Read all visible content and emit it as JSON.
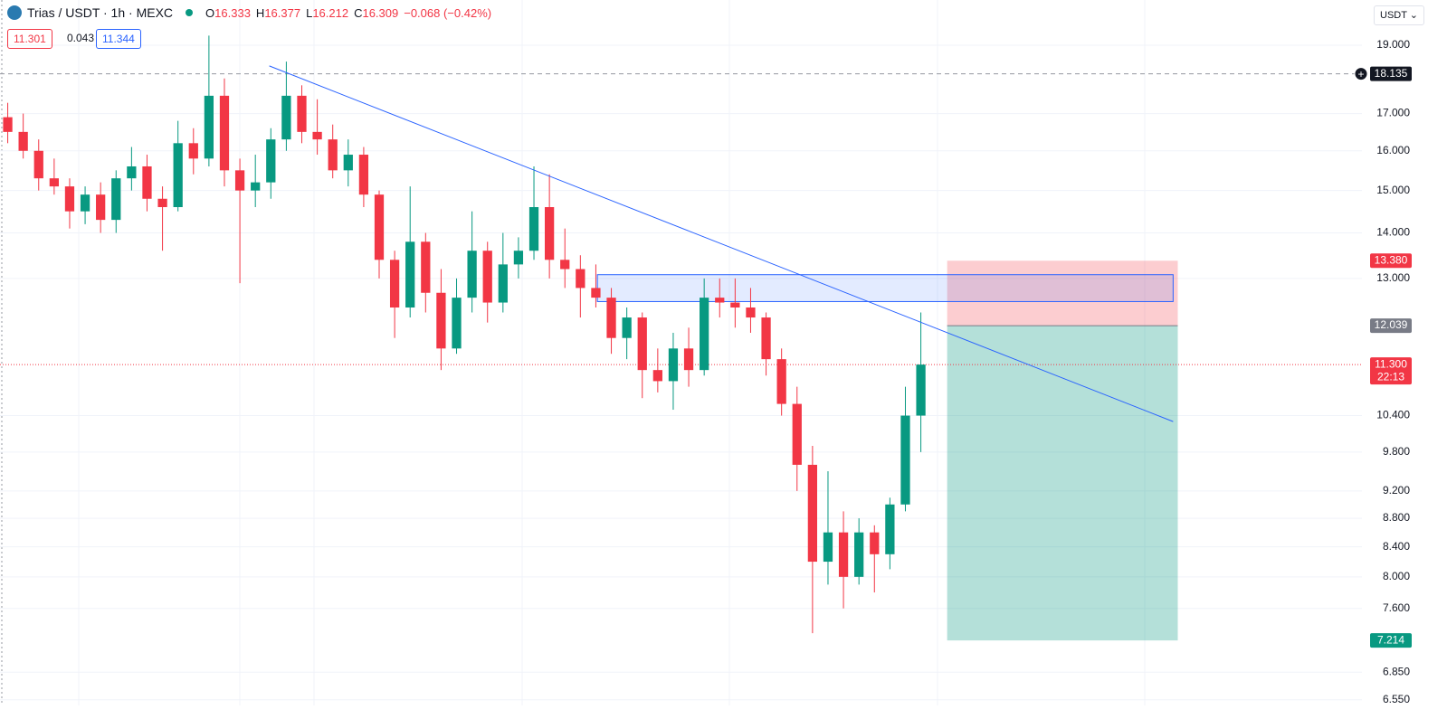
{
  "header": {
    "symbol": "Trias / USDT · 1h · MEXC",
    "ohlc": [
      {
        "key": "O",
        "value": 16.333
      },
      {
        "key": "H",
        "value": 16.377
      },
      {
        "key": "L",
        "value": 16.212
      },
      {
        "key": "C",
        "value": 16.309
      }
    ],
    "change": "−0.068 (−0.42%)"
  },
  "trade": {
    "sell": 11.301,
    "spread": 0.043,
    "buy": 11.344
  },
  "currency": "USDT",
  "chart_data": {
    "type": "candlestick",
    "log_scale": true,
    "grid": true,
    "up_color": "#089981",
    "down_color": "#f23645",
    "xlim": [
      -0.5,
      87.5
    ],
    "ylim": [
      6.49,
      20.45
    ],
    "yticks": [
      {
        "value": 19,
        "label": "19.000"
      },
      {
        "value": 17,
        "label": "17.000"
      },
      {
        "value": 16,
        "label": "16.000"
      },
      {
        "value": 15,
        "label": "15.000"
      },
      {
        "value": 14,
        "label": "14.000"
      },
      {
        "value": 13,
        "label": "13.000"
      },
      {
        "value": 10.4,
        "label": "10.400"
      },
      {
        "value": 9.8,
        "label": "9.800"
      },
      {
        "value": 9.2,
        "label": "9.200"
      },
      {
        "value": 8.8,
        "label": "8.800"
      },
      {
        "value": 8.4,
        "label": "8.400"
      },
      {
        "value": 8,
        "label": "8.000"
      },
      {
        "value": 7.6,
        "label": "7.600"
      },
      {
        "value": 6.85,
        "label": "6.850"
      },
      {
        "value": 6.55,
        "label": "6.550"
      }
    ],
    "open": [
      16.9,
      16.5,
      16.0,
      15.3,
      15.1,
      14.5,
      14.9,
      14.3,
      15.3,
      15.6,
      14.8,
      14.6,
      16.2,
      15.8,
      17.5,
      15.5,
      15.0,
      15.2,
      16.3,
      17.5,
      16.5,
      16.3,
      15.5,
      15.9,
      14.9,
      13.4,
      12.4,
      13.8,
      12.7,
      11.6,
      12.6,
      13.6,
      12.5,
      13.3,
      13.6,
      14.6,
      13.4,
      13.2,
      12.8,
      12.6,
      11.8,
      12.2,
      11.2,
      11.0,
      11.6,
      11.2,
      12.6,
      12.5,
      12.4,
      12.2,
      11.4,
      10.6,
      9.6,
      8.2,
      8.6,
      8.0,
      8.6,
      8.3,
      9.0,
      10.4
    ],
    "high": [
      17.3,
      17.0,
      16.3,
      15.8,
      15.3,
      15.1,
      15.2,
      15.5,
      16.1,
      15.9,
      15.1,
      16.8,
      16.6,
      19.3,
      18.0,
      15.8,
      15.9,
      16.6,
      18.5,
      17.8,
      17.4,
      16.7,
      16.3,
      16.1,
      15.0,
      13.6,
      15.1,
      14.0,
      13.2,
      13.0,
      14.5,
      13.8,
      14.0,
      13.9,
      15.6,
      15.4,
      14.1,
      13.5,
      13.3,
      12.8,
      12.4,
      12.3,
      11.6,
      11.9,
      12.0,
      13.0,
      13.0,
      13.0,
      12.8,
      12.3,
      11.6,
      10.9,
      9.9,
      9.5,
      8.9,
      8.8,
      8.7,
      9.1,
      10.9,
      12.3
    ],
    "low": [
      16.2,
      15.8,
      15.0,
      14.9,
      14.1,
      14.2,
      14.0,
      14.0,
      15.0,
      14.5,
      13.6,
      14.5,
      15.4,
      15.6,
      15.1,
      12.9,
      14.6,
      14.8,
      16.0,
      16.2,
      15.9,
      15.3,
      15.1,
      14.6,
      13.0,
      11.8,
      12.2,
      12.3,
      11.2,
      11.5,
      12.3,
      12.1,
      12.3,
      13.0,
      13.4,
      13.0,
      12.8,
      12.2,
      12.4,
      11.5,
      11.4,
      10.7,
      10.8,
      10.5,
      10.9,
      11.1,
      12.2,
      12.0,
      11.9,
      11.1,
      10.4,
      9.2,
      7.3,
      7.9,
      7.6,
      7.9,
      7.8,
      8.1,
      8.9,
      9.8
    ],
    "close": [
      16.5,
      16.0,
      15.3,
      15.1,
      14.5,
      14.9,
      14.3,
      15.3,
      15.6,
      14.8,
      14.6,
      16.2,
      15.8,
      17.5,
      15.5,
      15.0,
      15.2,
      16.3,
      17.5,
      16.5,
      16.3,
      15.5,
      15.9,
      14.9,
      13.4,
      12.4,
      13.8,
      12.7,
      11.6,
      12.6,
      13.6,
      12.5,
      13.3,
      13.6,
      14.6,
      13.4,
      13.2,
      12.8,
      12.6,
      11.8,
      12.2,
      11.2,
      11.0,
      11.6,
      11.2,
      12.6,
      12.5,
      12.4,
      12.2,
      11.4,
      10.6,
      9.6,
      8.2,
      8.6,
      8.0,
      8.6,
      8.3,
      9.0,
      10.4,
      11.3
    ],
    "marked_price": 18.135,
    "last_price": {
      "value": 11.3,
      "label": "11.300",
      "countdown": "22:13"
    },
    "position": {
      "x": [
        60.7,
        75.6
      ],
      "entry": 12.039,
      "stop": {
        "value": 13.38,
        "label": "13.380"
      },
      "target": 7.214
    },
    "trendline": {
      "x": [
        16.9,
        75.3
      ],
      "y": [
        18.37,
        10.3
      ]
    },
    "zone": {
      "x": [
        38.1,
        75.3
      ],
      "y": [
        12.52,
        13.08
      ]
    }
  }
}
